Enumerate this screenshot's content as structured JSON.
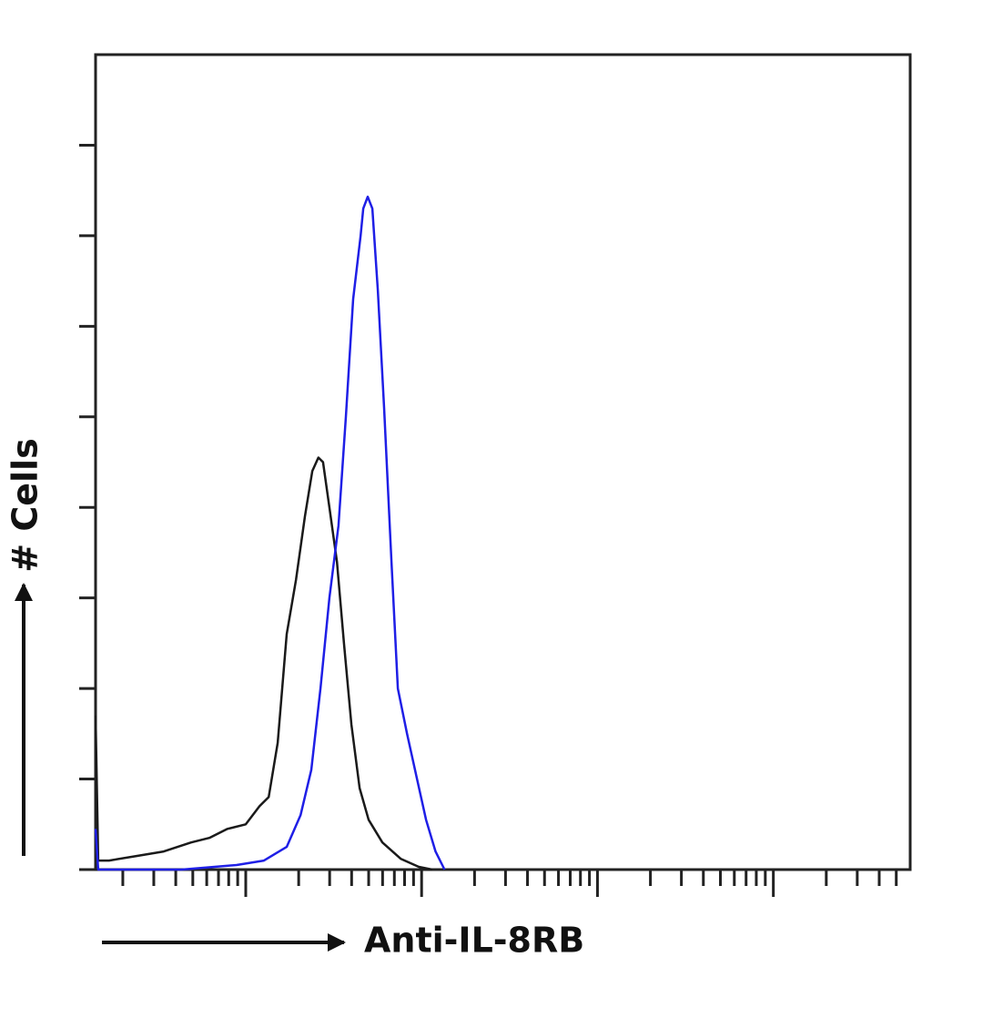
{
  "chart_data": {
    "type": "line",
    "xlabel": "Anti-IL-8RB",
    "ylabel": "# Cells",
    "xscale": "log",
    "xlim": [
      1.4,
      60000
    ],
    "ylim": [
      0,
      9
    ],
    "xticks": [
      2,
      3,
      4,
      5,
      6,
      7,
      8,
      9,
      10,
      20,
      30,
      40,
      50,
      60,
      70,
      80,
      90,
      100,
      200,
      300,
      400,
      500,
      600,
      700,
      800,
      900,
      1000,
      2000,
      3000,
      4000,
      5000,
      6000,
      7000,
      8000,
      9000,
      10000,
      20000,
      30000,
      40000,
      50000
    ],
    "yticks": [
      0,
      1,
      2,
      3,
      4,
      5,
      6,
      7,
      8
    ],
    "series": [
      {
        "color": "#1a1a1a",
        "x": [
          1.4,
          1.45,
          1.67,
          2.39,
          3.42,
          4.89,
          6.21,
          7.87,
          10.0,
          11.97,
          13.5,
          15.2,
          17.1,
          19.3,
          21.7,
          23.9,
          25.9,
          27.5,
          29.9,
          33.0,
          36.2,
          39.9,
          44.4,
          50.0,
          59.8,
          76.0,
          96.4,
          115
        ],
        "values": [
          1.7,
          0.1,
          0.1,
          0.15,
          0.2,
          0.3,
          0.35,
          0.45,
          0.5,
          0.7,
          0.8,
          1.4,
          2.6,
          3.2,
          3.9,
          4.4,
          4.55,
          4.5,
          4.0,
          3.4,
          2.5,
          1.6,
          0.9,
          0.55,
          0.3,
          0.12,
          0.03,
          0
        ]
      },
      {
        "color": "#1f1fe6",
        "x": [
          1.4,
          1.45,
          4.33,
          8.87,
          12.7,
          17.1,
          20.5,
          23.6,
          26.6,
          29.9,
          33.7,
          37.1,
          40.8,
          45.0,
          46.6,
          49.4,
          52.5,
          56.4,
          61.2,
          67.4,
          73.3,
          82.6,
          94.2,
          106,
          120,
          135
        ],
        "values": [
          0.45,
          0,
          0,
          0.05,
          0.1,
          0.25,
          0.6,
          1.1,
          2.0,
          3.0,
          3.8,
          5.0,
          6.3,
          7.0,
          7.3,
          7.43,
          7.3,
          6.4,
          5.1,
          3.4,
          2.0,
          1.5,
          1.0,
          0.55,
          0.2,
          0
        ]
      }
    ]
  }
}
